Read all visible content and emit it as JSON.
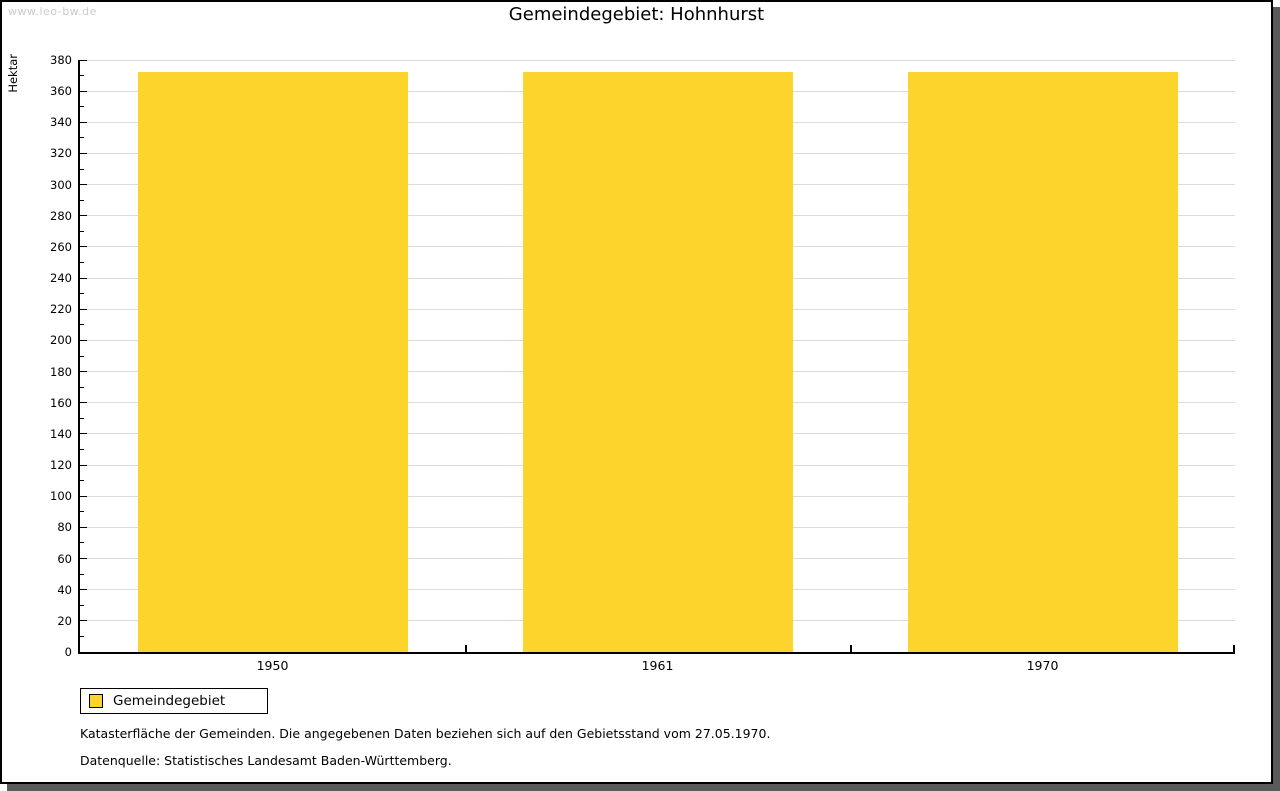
{
  "watermark": "www.leo-bw.de",
  "title": "Gemeindegebiet: Hohnhurst",
  "chart_data": {
    "type": "bar",
    "title": "Gemeindegebiet: Hohnhurst",
    "categories": [
      "1950",
      "1961",
      "1970"
    ],
    "series": [
      {
        "name": "Gemeindegebiet",
        "values": [
          372,
          372,
          372
        ]
      }
    ],
    "xlabel": "",
    "ylabel": "Hektar",
    "ylim": [
      0,
      380
    ],
    "ytick_step": 20,
    "minor_tick_step": 10,
    "grid": true,
    "bar_color": "#FCD42C",
    "legend_position": "bottom-left"
  },
  "legend": {
    "items": [
      {
        "label": "Gemeindegebiet",
        "color": "#FCD42C"
      }
    ]
  },
  "footnotes": [
    "Katasterfläche der Gemeinden. Die angegebenen Daten beziehen sich auf den Gebietsstand vom 27.05.1970.",
    "Datenquelle: Statistisches Landesamt Baden-Württemberg."
  ]
}
